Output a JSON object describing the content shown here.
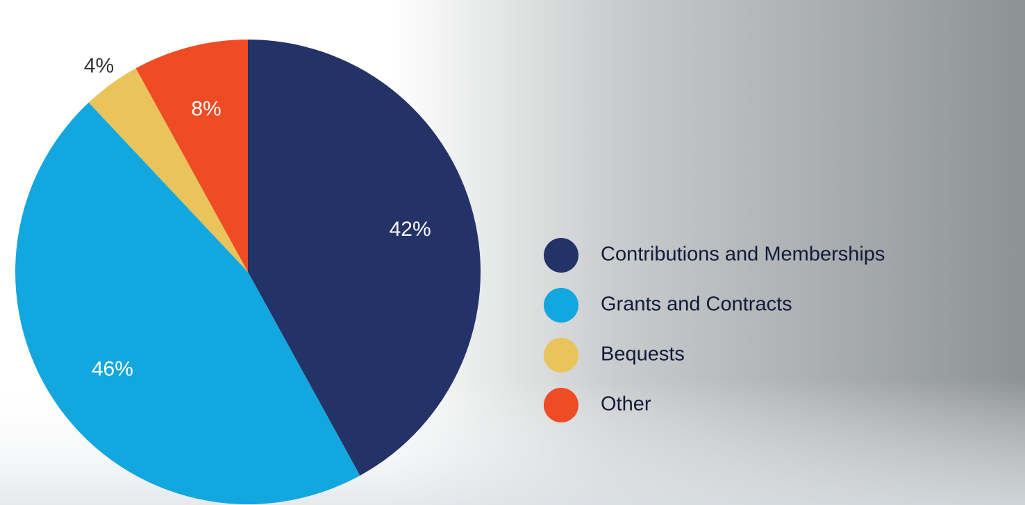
{
  "chart_data": {
    "type": "pie",
    "categories": [
      "Contributions and Memberships",
      "Grants and Contracts",
      "Bequests",
      "Other"
    ],
    "values": [
      42,
      46,
      4,
      8
    ],
    "value_labels": [
      "42%",
      "46%",
      "4%",
      "8%"
    ],
    "colors": [
      "#243367",
      "#12a7de",
      "#e8c45a",
      "#ef4b24"
    ]
  }
}
